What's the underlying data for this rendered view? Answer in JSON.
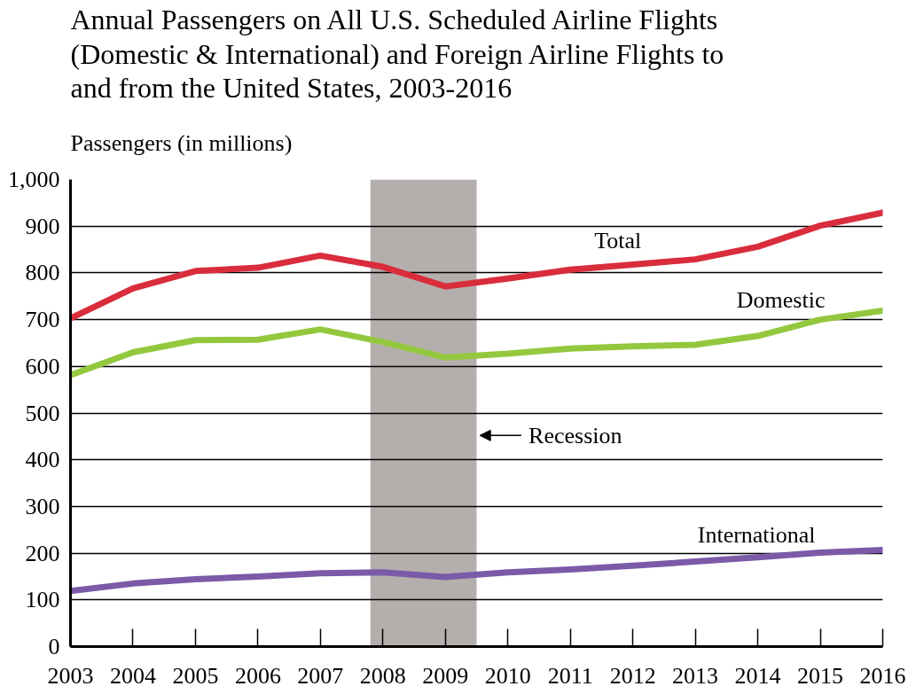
{
  "chart_data": {
    "type": "line",
    "title": "Annual Passengers on All U.S. Scheduled Airline Flights (Domestic & International) and Foreign Airline Flights to and from the United States, 2003-2016",
    "ylabel": "Passengers (in millions)",
    "x": [
      2003,
      2004,
      2005,
      2006,
      2007,
      2008,
      2009,
      2010,
      2011,
      2012,
      2013,
      2014,
      2015,
      2016
    ],
    "xlim": [
      2003,
      2016
    ],
    "xticks": [
      2003,
      2004,
      2005,
      2006,
      2007,
      2008,
      2009,
      2010,
      2011,
      2012,
      2013,
      2014,
      2015,
      2016
    ],
    "ylim": [
      0,
      1000
    ],
    "yticks": [
      0,
      100,
      200,
      300,
      400,
      500,
      600,
      700,
      800,
      900,
      {
        "value": 1000,
        "label": "1,000"
      }
    ],
    "grid": "y",
    "line_style": "solid",
    "series": [
      {
        "name": "Total",
        "color": "#d92d3c",
        "values": [
          703,
          767,
          804,
          811,
          837,
          813,
          771,
          788,
          807,
          818,
          829,
          856,
          901,
          929
        ]
      },
      {
        "name": "Domestic",
        "color": "#93c83e",
        "values": [
          581,
          630,
          656,
          657,
          679,
          652,
          619,
          627,
          638,
          643,
          646,
          665,
          700,
          719
        ]
      },
      {
        "name": "International",
        "color": "#7b5aa8",
        "values": [
          119,
          135,
          144,
          150,
          157,
          159,
          149,
          159,
          165,
          173,
          182,
          191,
          201,
          207
        ]
      }
    ],
    "bands": [
      {
        "axis": "x",
        "from": 2007.8,
        "to": 2009.5,
        "label": "Recession",
        "color": "#b4afad"
      }
    ]
  }
}
